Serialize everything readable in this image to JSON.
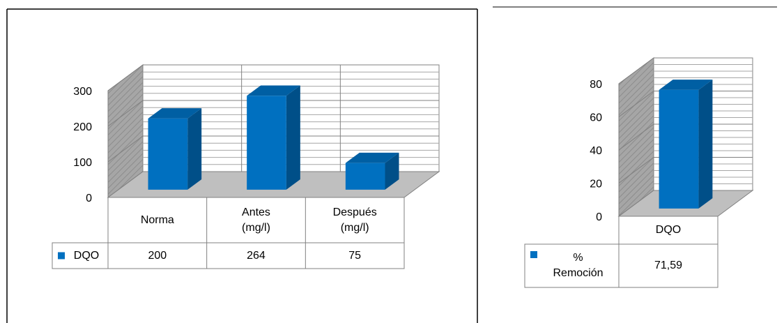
{
  "chart_data": [
    {
      "type": "bar",
      "categories": [
        "Norma",
        "Antes (mg/l)",
        "Después (mg/l)"
      ],
      "series": [
        {
          "name": "DQO",
          "color": "#0070c0",
          "values": [
            200,
            264,
            75
          ]
        }
      ],
      "ylim": [
        0,
        300
      ],
      "yticks": [
        0,
        100,
        200,
        300
      ],
      "grid": true
    },
    {
      "type": "bar",
      "categories": [
        "DQO"
      ],
      "series": [
        {
          "name": "% Remoción",
          "color": "#0070c0",
          "values": [
            71.59
          ],
          "value_labels": [
            "71,59"
          ]
        }
      ],
      "ylim": [
        0,
        80
      ],
      "yticks": [
        0,
        20,
        40,
        60,
        80
      ],
      "grid": true
    }
  ]
}
